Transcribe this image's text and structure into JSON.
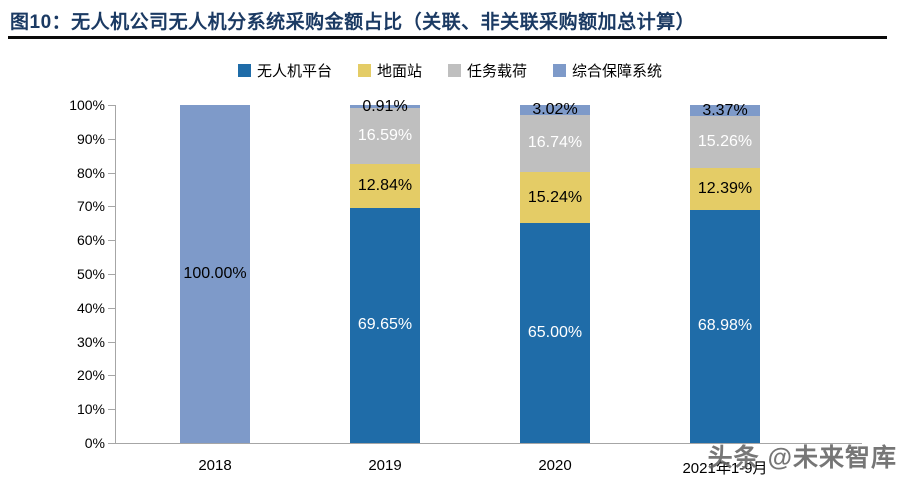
{
  "figure": {
    "title": "图10：无人机公司无人机分系统采购金额占比（关联、非关联采购额加总计算）",
    "watermark": "头条 @未来智库"
  },
  "colors": {
    "title_text": "#1B3A63",
    "title_rule": "#0A0A0A",
    "axis_line": "#A6A6A6",
    "watermark": "#5F5F5F",
    "background": "#FFFFFF"
  },
  "chart_data": {
    "type": "bar",
    "stacked": true,
    "title": "无人机公司无人机分系统采购金额占比（关联、非关联采购额加总计算）",
    "categories": [
      "2018",
      "2019",
      "2020",
      "2021年1-9月"
    ],
    "series": [
      {
        "name": "无人机平台",
        "color": "#1F6CA8",
        "label_color": "#FFFFFF",
        "values": [
          0,
          69.65,
          65.0,
          68.98
        ]
      },
      {
        "name": "地面站",
        "color": "#E4CC66",
        "label_color": "#000000",
        "values": [
          0,
          12.84,
          15.24,
          12.39
        ]
      },
      {
        "name": "任务载荷",
        "color": "#BFBFBF",
        "label_color": "#FFFFFF",
        "values": [
          0,
          16.59,
          16.74,
          15.26
        ]
      },
      {
        "name": "综合保障系统",
        "color": "#7E9AC9",
        "label_color": "#000000",
        "values": [
          100.0,
          0.91,
          3.02,
          3.37
        ]
      }
    ],
    "ylim": [
      0,
      100
    ],
    "y_tick_step": 10,
    "y_ticks": [
      "0%",
      "10%",
      "20%",
      "30%",
      "40%",
      "50%",
      "60%",
      "70%",
      "80%",
      "90%",
      "100%"
    ],
    "label_format": "two-decimal-percent",
    "grid": false,
    "legend_position": "top"
  }
}
